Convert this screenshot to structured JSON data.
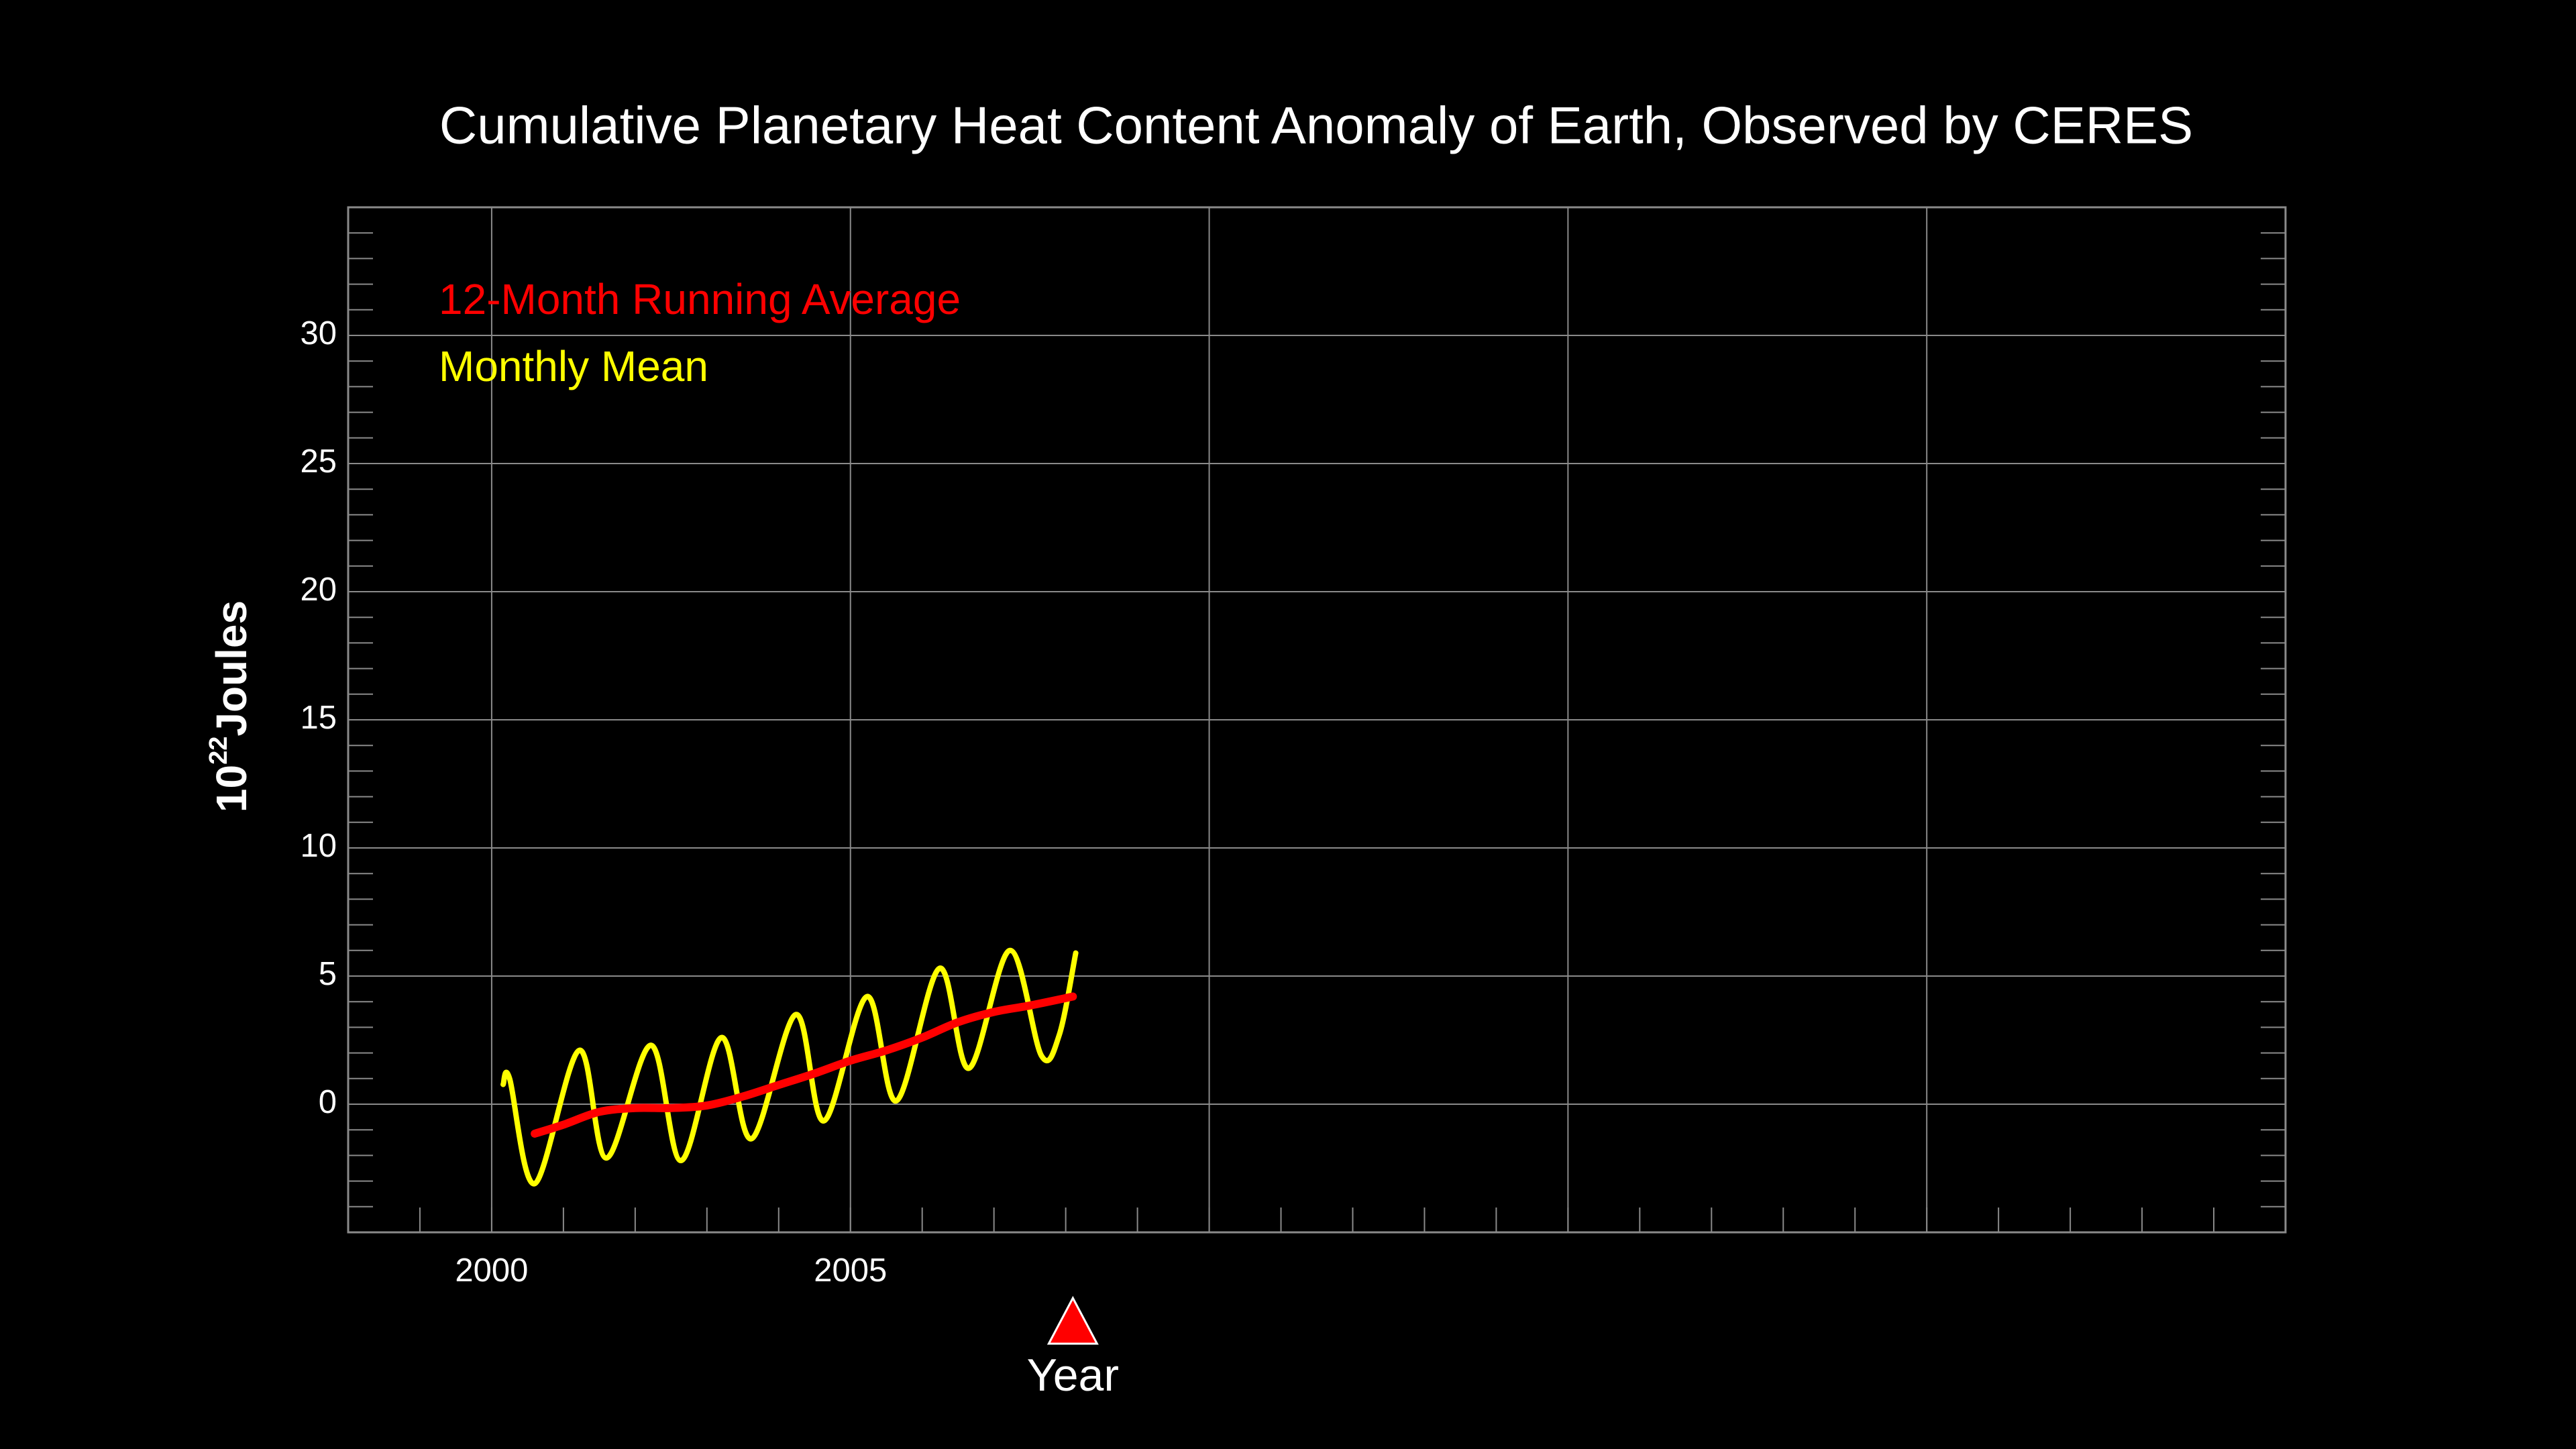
{
  "chart_data": {
    "type": "line",
    "title": "Cumulative Planetary Heat Content Anomaly of Earth, Observed by CERES",
    "xlabel": "Year",
    "ylabel": "10",
    "ylabel_exponent": "22",
    "ylabel_unit": "Joules",
    "xlim": [
      1998,
      2025
    ],
    "ylim": [
      -5,
      35
    ],
    "xticks": [
      2000,
      2005,
      {
        "value": 2010,
        "label": null
      },
      {
        "value": 2015,
        "label": null
      },
      {
        "value": 2020,
        "label": null
      }
    ],
    "yticks": [
      0,
      5,
      10,
      15,
      20,
      25,
      30
    ],
    "grid": true,
    "year_marker": 2008.1,
    "year_marker_color": "#ff0000",
    "series": [
      {
        "name": "12-Month Running Average",
        "color": "#ff0000",
        "x": [
          2000.6,
          2001.0,
          2001.5,
          2002.0,
          2002.5,
          2003.0,
          2003.5,
          2004.0,
          2004.5,
          2005.0,
          2005.5,
          2006.0,
          2006.5,
          2007.0,
          2007.5,
          2008.1
        ],
        "values": [
          -1.15,
          -0.8,
          -0.3,
          -0.15,
          -0.15,
          -0.05,
          0.3,
          0.75,
          1.2,
          1.7,
          2.1,
          2.6,
          3.2,
          3.6,
          3.85,
          4.2
        ]
      },
      {
        "name": "Monthly Mean",
        "color": "#ffff00",
        "x": [
          2000.16,
          2000.25,
          2000.6,
          2001.22,
          2001.6,
          2002.22,
          2002.64,
          2003.2,
          2003.62,
          2004.24,
          2004.63,
          2005.23,
          2005.64,
          2006.24,
          2006.65,
          2007.22,
          2007.66,
          2007.91,
          2008.14
        ],
        "values": [
          0.77,
          1.0,
          -3.1,
          2.1,
          -2.1,
          2.3,
          -2.2,
          2.6,
          -1.35,
          3.5,
          -0.65,
          4.2,
          0.13,
          5.3,
          1.4,
          6.0,
          1.9,
          2.7,
          5.9
        ]
      }
    ]
  }
}
